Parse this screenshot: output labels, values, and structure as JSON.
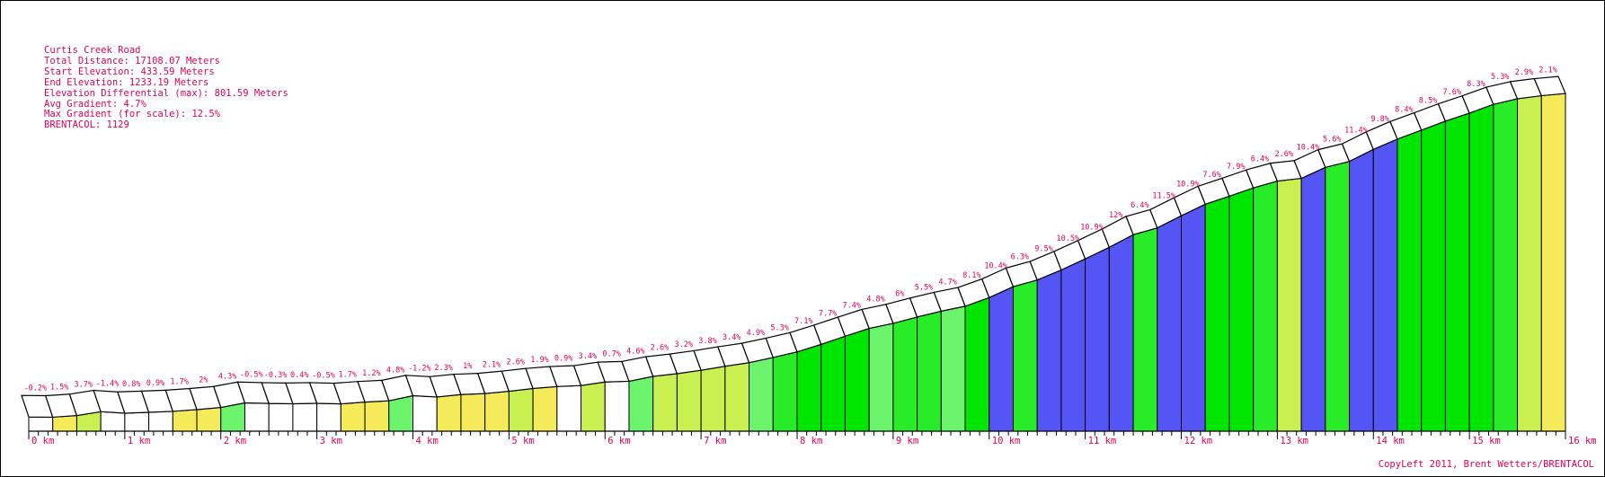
{
  "chart_data": {
    "type": "area",
    "title": "Curtis Creek Road",
    "stats": [
      "Total Distance: 17108.07 Meters",
      "Start Elevation: 433.59 Meters",
      "End Elevation: 1233.19 Meters",
      "Elevation Differential (max): 801.59 Meters",
      "Avg Gradient: 4.7%",
      "Max Gradient (for scale): 12.5%",
      "BRENTACOL: 1129"
    ],
    "xlabel": "",
    "ylabel": "",
    "x_ticks": [
      "0 km",
      "1 km",
      "2 km",
      "3 km",
      "4 km",
      "5 km",
      "6 km",
      "7 km",
      "8 km",
      "9 km",
      "10 km",
      "11 km",
      "12 km",
      "13 km",
      "14 km",
      "15 km",
      "16 km"
    ],
    "segment_km": 0.25,
    "grade_labels": [
      "-0.2%",
      "1.5%",
      "3.7%",
      "-1.4%",
      "0.8%",
      "0.9%",
      "1.7%",
      "2%",
      "4.3%",
      "-0.5%",
      "-0.3%",
      "0.4%",
      "-0.5%",
      "1.7%",
      "1.2%",
      "4.8%",
      "-1.2%",
      "2.3%",
      "1%",
      "2.1%",
      "2.6%",
      "1.9%",
      "0.9%",
      "3.4%",
      "0.7%",
      "4.6%",
      "2.6%",
      "3.2%",
      "3.8%",
      "3.4%",
      "4.9%",
      "5.3%",
      "7.1%",
      "7.7%",
      "7.4%",
      "4.8%",
      "6%",
      "5.5%",
      "4.7%",
      "8.1%",
      "10.4%",
      "6.3%",
      "9.5%",
      "10.5%",
      "10.9%",
      "12%",
      "6.4%",
      "11.5%",
      "10.9%",
      "7.6%",
      "7.9%",
      "6.4%",
      "2.6%",
      "10.4%",
      "5.6%",
      "11.4%",
      "9.8%",
      "8.4%",
      "8.5%",
      "7.6%",
      "8.3%",
      "5.3%",
      "2.9%",
      "2.1%"
    ],
    "grades": [
      -0.2,
      1.5,
      3.7,
      -1.4,
      0.8,
      0.9,
      1.7,
      2,
      4.3,
      -0.5,
      -0.3,
      0.4,
      -0.5,
      1.7,
      1.2,
      4.8,
      -1.2,
      2.3,
      1,
      2.1,
      2.6,
      1.9,
      0.9,
      3.4,
      0.7,
      4.6,
      2.6,
      3.2,
      3.8,
      3.4,
      4.9,
      5.3,
      7.1,
      7.7,
      7.4,
      4.8,
      6,
      5.5,
      4.7,
      8.1,
      10.4,
      6.3,
      9.5,
      10.5,
      10.9,
      12,
      6.4,
      11.5,
      10.9,
      7.6,
      7.9,
      6.4,
      2.6,
      10.4,
      5.6,
      11.4,
      9.8,
      8.4,
      8.5,
      7.6,
      8.3,
      5.3,
      2.9,
      2.1
    ],
    "elevation_m": [
      433.6,
      433.1,
      436.9,
      446.1,
      442.6,
      444.6,
      446.9,
      451.1,
      456.1,
      466.9,
      465.6,
      464.9,
      465.9,
      464.6,
      468.9,
      471.9,
      483.9,
      480.9,
      486.6,
      489.1,
      494.4,
      500.9,
      505.6,
      507.9,
      516.4,
      518.1,
      529.6,
      536.1,
      544.1,
      553.6,
      562.1,
      574.4,
      587.6,
      605.4,
      624.6,
      643.1,
      655.1,
      670.1,
      683.9,
      695.6,
      715.9,
      741.9,
      757.6,
      781.4,
      807.6,
      834.9,
      864.9,
      880.9,
      909.6,
      936.9,
      955.9,
      975.6,
      991.6,
      998.1,
      1024.1,
      1038.1,
      1066.6,
      1091.1,
      1112.1,
      1133.4,
      1152.4,
      1173.1,
      1186.4,
      1193.6,
      1198.9
    ],
    "ylim": [
      400,
      1250
    ],
    "palette": {
      "white": "#ffffff",
      "yellow": "#f5eb5a",
      "lime": "#c8f050",
      "light_green": "#6cf56c",
      "green": "#29ec29",
      "bright_green": "#00e600",
      "blue": "#5555f5",
      "outline": "#000000",
      "label": "#e6005a"
    }
  },
  "footer": {
    "copyright": "CopyLeft 2011, Brent Wetters/BRENTACOL"
  }
}
